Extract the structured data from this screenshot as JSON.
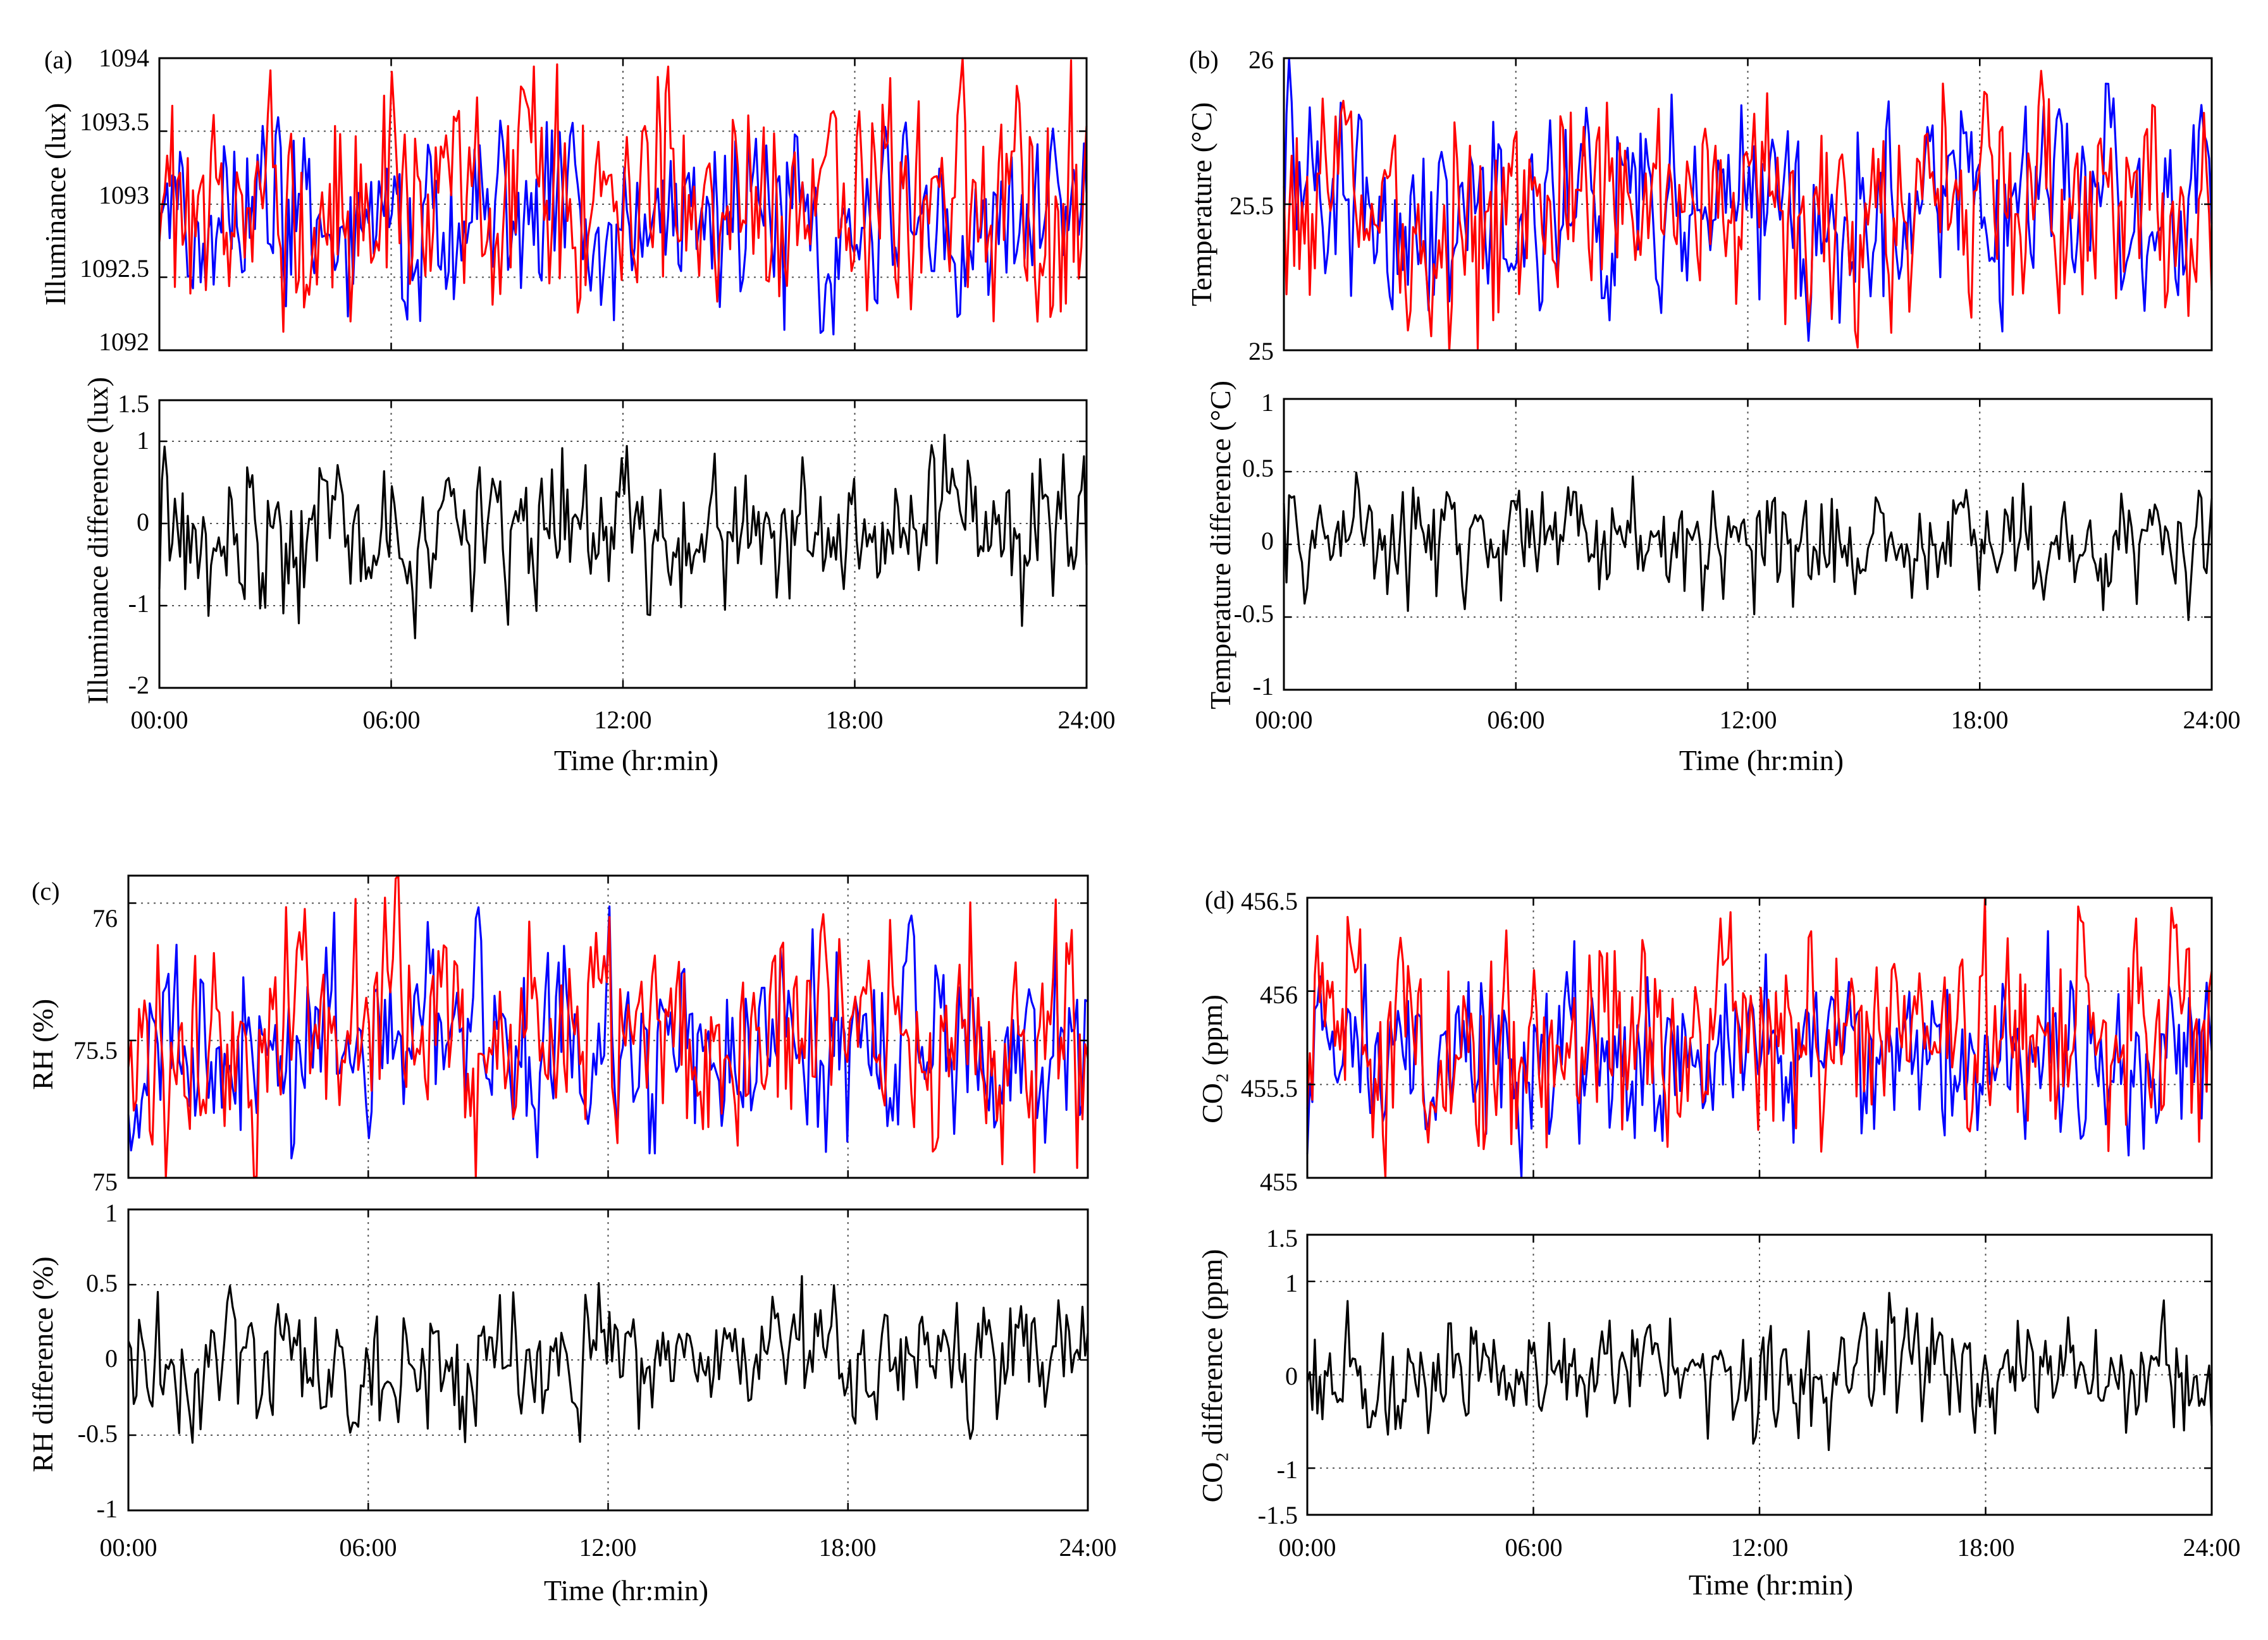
{
  "chart_data": [
    {
      "panel_label": "(a)",
      "type": "line",
      "top": {
        "ylabel": "Illuminance (lux)",
        "ylim": [
          1092,
          1094
        ],
        "yticks": [
          "1092",
          "1092.5",
          "1093",
          "1093.5",
          "1094"
        ],
        "series": [
          {
            "name": "blue",
            "color": "#0000ff",
            "mean": 1092.9,
            "amp": 0.55,
            "seed": 11
          },
          {
            "name": "red",
            "color": "#ff0000",
            "mean": 1093.05,
            "amp": 0.7,
            "seed": 12
          }
        ]
      },
      "bottom": {
        "ylabel": "Illuminance difference (lux)",
        "ylim": [
          -2,
          1.5
        ],
        "yticks": [
          "-2",
          "-1",
          "0",
          "1",
          "1.5"
        ],
        "series": [
          {
            "name": "difference",
            "color": "#000000",
            "mean": -0.1,
            "amp": 0.75,
            "seed": 13
          }
        ]
      },
      "xlabel": "Time (hr:min)",
      "xticks": [
        "00:00",
        "06:00",
        "12:00",
        "18:00",
        "24:00"
      ]
    },
    {
      "panel_label": "(b)",
      "type": "line",
      "top": {
        "ylabel": "Temperature (°C)",
        "ylim": [
          25,
          26
        ],
        "yticks": [
          "25",
          "25.5",
          "26"
        ],
        "series": [
          {
            "name": "blue",
            "color": "#0000ff",
            "mean": 25.5,
            "amp": 0.3,
            "seed": 21
          },
          {
            "name": "red",
            "color": "#ff0000",
            "mean": 25.5,
            "amp": 0.32,
            "seed": 22
          }
        ]
      },
      "bottom": {
        "ylabel": "Temperature difference (°C)",
        "ylim": [
          -1,
          1
        ],
        "yticks": [
          "-1",
          "-0.5",
          "0",
          "0.5",
          "1"
        ],
        "series": [
          {
            "name": "difference",
            "color": "#000000",
            "mean": 0.0,
            "amp": 0.35,
            "seed": 23
          }
        ]
      },
      "xlabel": "Time (hr:min)",
      "xticks": [
        "00:00",
        "06:00",
        "12:00",
        "18:00",
        "24:00"
      ]
    },
    {
      "panel_label": "(c)",
      "type": "line",
      "top": {
        "ylabel": "RH (%)",
        "ylim": [
          75,
          76.1
        ],
        "yticks": [
          "75",
          "75.5",
          "76"
        ],
        "series": [
          {
            "name": "blue",
            "color": "#0000ff",
            "mean": 75.5,
            "amp": 0.3,
            "seed": 31
          },
          {
            "name": "red",
            "color": "#ff0000",
            "mean": 75.5,
            "amp": 0.34,
            "seed": 32
          }
        ]
      },
      "bottom": {
        "ylabel": "RH difference (%)",
        "ylim": [
          -1,
          1
        ],
        "yticks": [
          "-1",
          "-0.5",
          "0",
          "0.5",
          "1"
        ],
        "series": [
          {
            "name": "difference",
            "color": "#000000",
            "mean": 0.0,
            "amp": 0.38,
            "seed": 33
          }
        ]
      },
      "xlabel": "Time (hr:min)",
      "xticks": [
        "00:00",
        "06:00",
        "12:00",
        "18:00",
        "24:00"
      ]
    },
    {
      "panel_label": "(d)",
      "type": "line",
      "top": {
        "ylabel": "CO₂ (ppm)",
        "ylim": [
          455,
          456.5
        ],
        "yticks": [
          "455",
          "455.5",
          "456",
          "456.5"
        ],
        "series": [
          {
            "name": "blue",
            "color": "#0000ff",
            "mean": 455.65,
            "amp": 0.38,
            "seed": 41
          },
          {
            "name": "red",
            "color": "#ff0000",
            "mean": 455.75,
            "amp": 0.5,
            "seed": 42
          }
        ]
      },
      "bottom": {
        "ylabel": "CO₂ difference (ppm)",
        "ylim": [
          -1.5,
          1.5
        ],
        "yticks": [
          "-1.5",
          "-1",
          "0",
          "1",
          "1.5"
        ],
        "series": [
          {
            "name": "difference",
            "color": "#000000",
            "mean": 0.0,
            "amp": 0.55,
            "seed": 43
          }
        ]
      },
      "xlabel": "Time (hr:min)",
      "xticks": [
        "00:00",
        "06:00",
        "12:00",
        "18:00",
        "24:00"
      ]
    }
  ]
}
